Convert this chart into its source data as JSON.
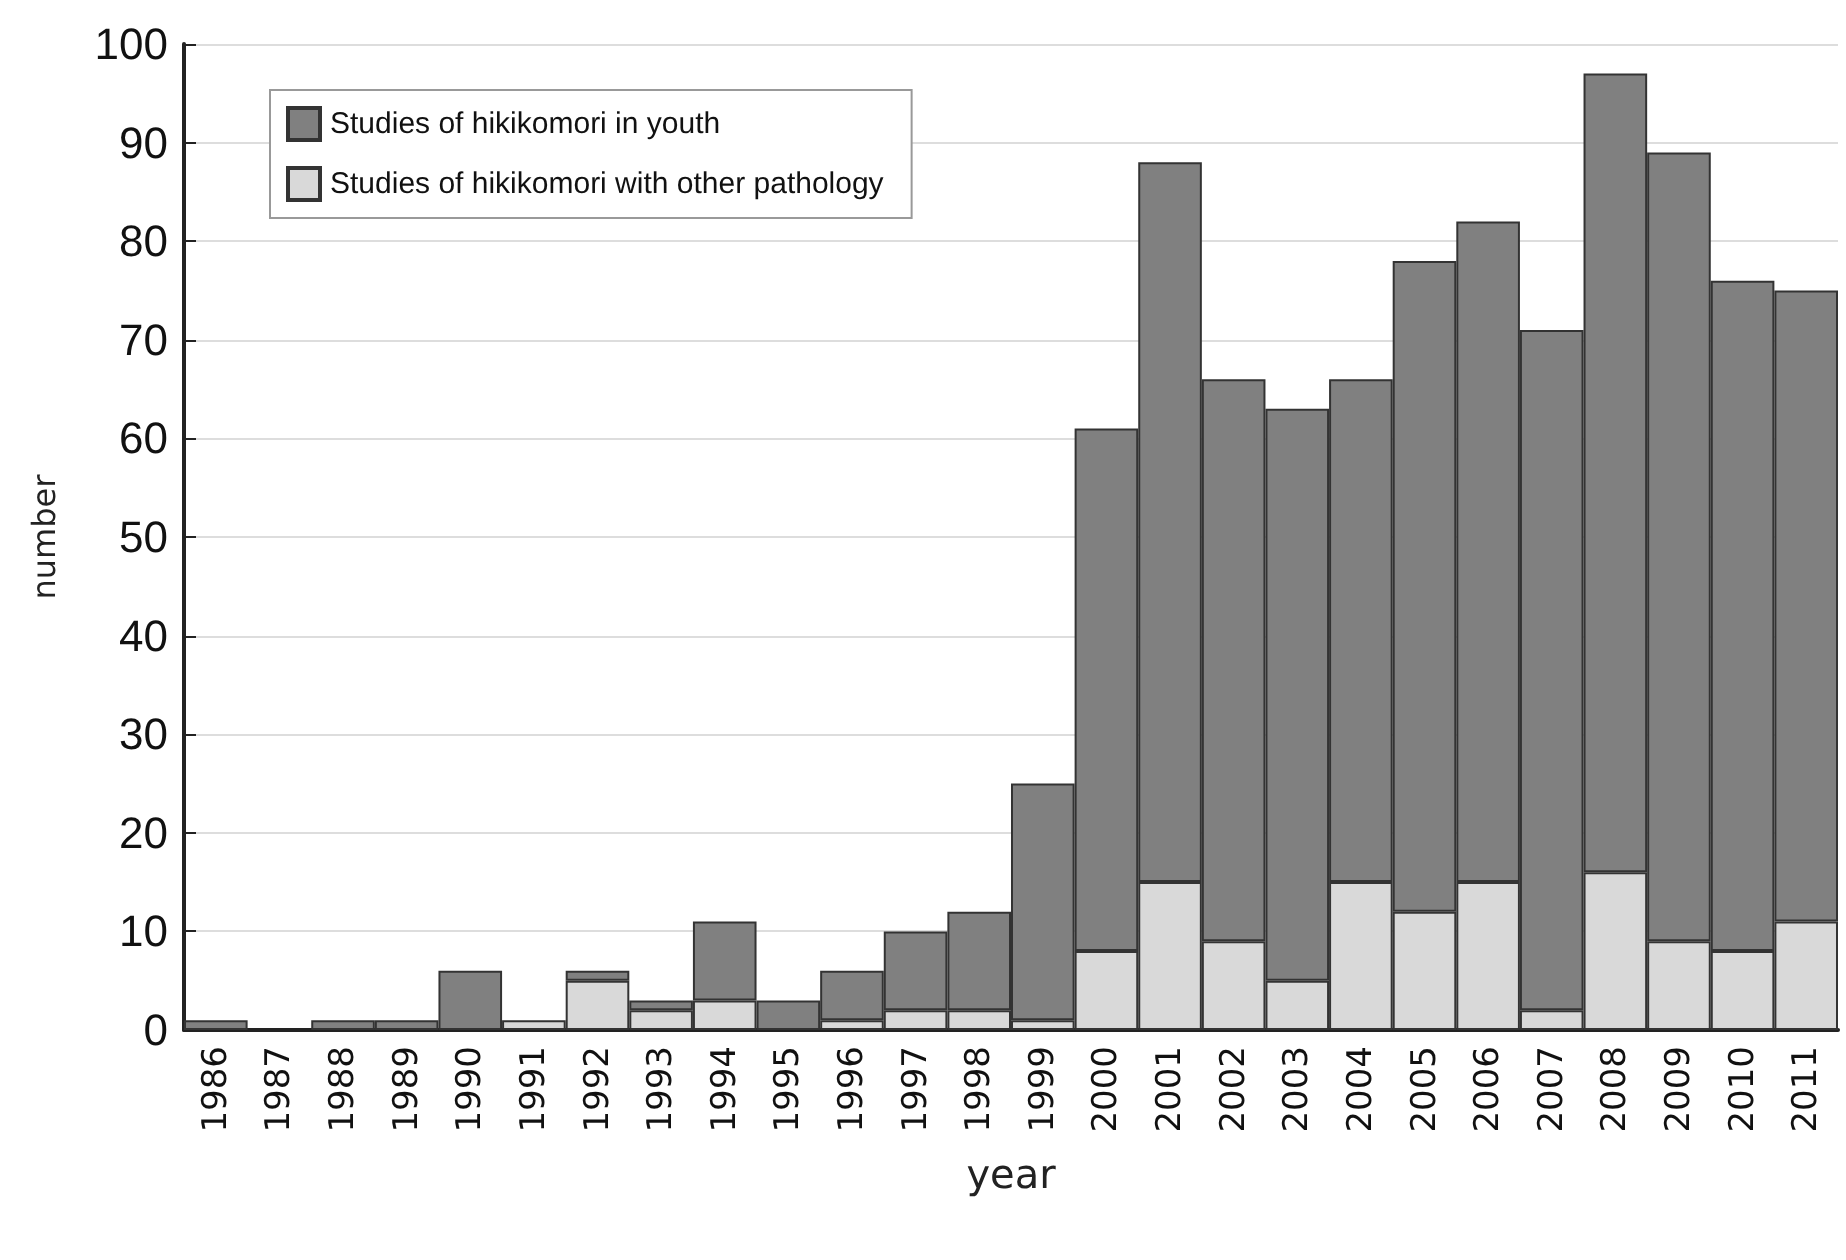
{
  "chart_data": {
    "type": "bar",
    "xlabel": "year",
    "ylabel": "number",
    "categories": [
      "1986",
      "1987",
      "1988",
      "1989",
      "1990",
      "1991",
      "1992",
      "1993",
      "1994",
      "1995",
      "1996",
      "1997",
      "1998",
      "1999",
      "2000",
      "2001",
      "2002",
      "2003",
      "2004",
      "2005",
      "2006",
      "2007",
      "2008",
      "2009",
      "2010",
      "2011"
    ],
    "stacked": true,
    "series": [
      {
        "name": "Studies of hikikomori with other pathology",
        "color": "#d9d9d9",
        "values": [
          0,
          0,
          0,
          0,
          0,
          1,
          5,
          2,
          3,
          0,
          1,
          2,
          2,
          1,
          8,
          15,
          9,
          5,
          15,
          12,
          15,
          2,
          16,
          9,
          8,
          11
        ]
      },
      {
        "name": "Studies of hikikomori in youth",
        "color": "#808080",
        "values": [
          1,
          0,
          1,
          1,
          6,
          0,
          1,
          1,
          8,
          3,
          5,
          8,
          10,
          24,
          53,
          73,
          57,
          58,
          51,
          66,
          67,
          69,
          81,
          80,
          68,
          64
        ]
      }
    ],
    "ylim": [
      0,
      100
    ],
    "yticks": [
      0,
      10,
      20,
      30,
      40,
      50,
      60,
      70,
      80,
      90,
      100
    ],
    "grid": "y",
    "legend": "top left"
  }
}
